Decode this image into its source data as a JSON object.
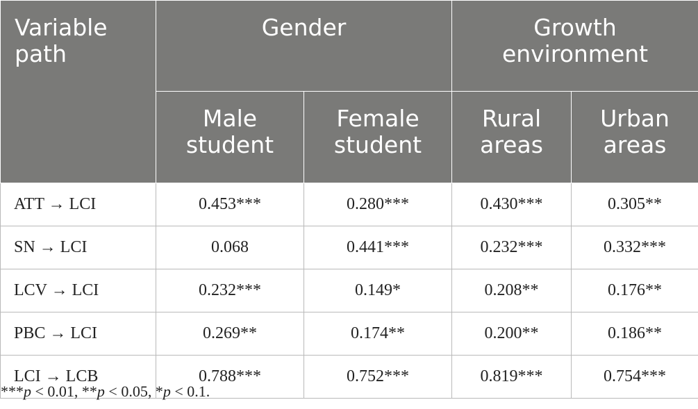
{
  "header": {
    "variable": "Variable path",
    "gender": "Gender",
    "growth": "Growth environment",
    "sub": [
      "Male student",
      "Female student",
      "Rural areas",
      "Urban areas"
    ]
  },
  "rows": [
    {
      "path": "ATT → LCI",
      "values": [
        "0.453***",
        "0.280***",
        "0.430***",
        "0.305**"
      ]
    },
    {
      "path": "SN → LCI",
      "values": [
        "0.068",
        "0.441***",
        "0.232***",
        "0.332***"
      ]
    },
    {
      "path": "LCV → LCI",
      "values": [
        "0.232***",
        "0.149*",
        "0.208**",
        "0.176**"
      ]
    },
    {
      "path": "PBC → LCI",
      "values": [
        "0.269**",
        "0.174**",
        "0.200**",
        "0.186**"
      ]
    },
    {
      "path": "LCI → LCB",
      "values": [
        "0.788***",
        "0.752***",
        "0.819***",
        "0.754***"
      ]
    }
  ],
  "note": [
    {
      "stars": "***",
      "p": "p",
      "rest": " < 0.01, "
    },
    {
      "stars": "**",
      "p": "p",
      "rest": " < 0.05, "
    },
    {
      "stars": "*",
      "p": "p",
      "rest": " < 0.1."
    }
  ]
}
